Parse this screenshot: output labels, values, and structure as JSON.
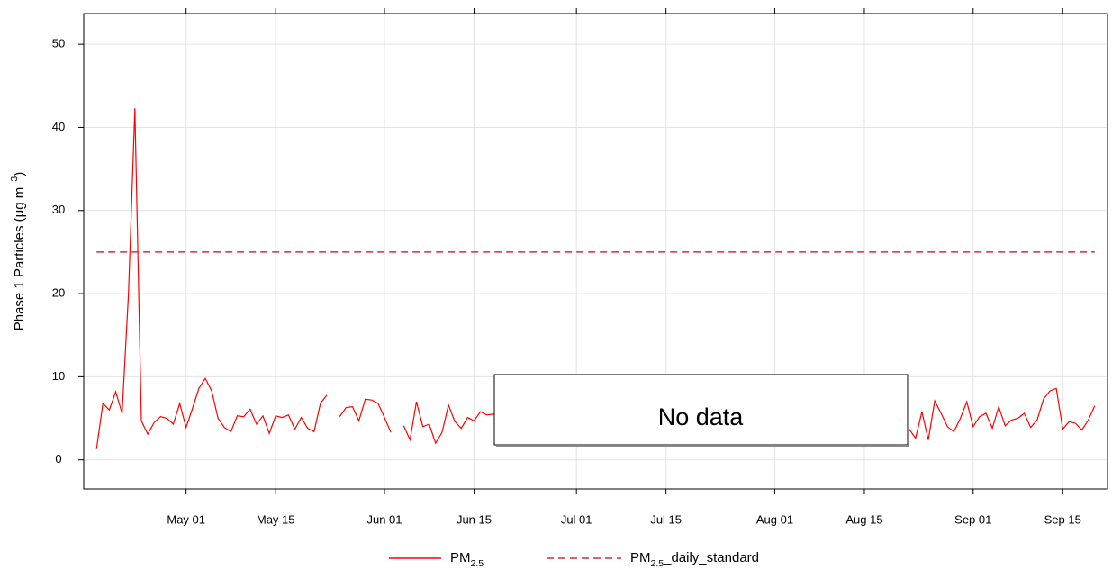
{
  "chart_data": {
    "type": "line",
    "ylabel": "Phase 1 Particles (μg m−3)",
    "annotation": "No data",
    "x": [
      "Apr 17",
      "Apr 18",
      "Apr 19",
      "Apr 20",
      "Apr 21",
      "Apr 22",
      "Apr 23",
      "Apr 24",
      "Apr 25",
      "Apr 26",
      "Apr 27",
      "Apr 28",
      "Apr 29",
      "Apr 30",
      "May 01",
      "May 02",
      "May 03",
      "May 04",
      "May 05",
      "May 06",
      "May 07",
      "May 08",
      "May 09",
      "May 10",
      "May 11",
      "May 12",
      "May 13",
      "May 14",
      "May 15",
      "May 16",
      "May 17",
      "May 18",
      "May 19",
      "May 20",
      "May 21",
      "May 22",
      "May 23",
      "May 24",
      "May 25",
      "May 26",
      "May 27",
      "May 28",
      "May 29",
      "May 30",
      "May 31",
      "Jun 01",
      "Jun 02",
      "Jun 03",
      "Jun 04",
      "Jun 05",
      "Jun 06",
      "Jun 07",
      "Jun 08",
      "Jun 09",
      "Jun 10",
      "Jun 11",
      "Jun 12",
      "Jun 13",
      "Jun 14",
      "Jun 15",
      "Jun 16",
      "Jun 17",
      "Jun 18",
      "Jun 19",
      "Jun 20",
      "Aug 21",
      "Aug 22",
      "Aug 23",
      "Aug 24",
      "Aug 25",
      "Aug 26",
      "Aug 27",
      "Aug 28",
      "Aug 29",
      "Aug 30",
      "Aug 31",
      "Sep 01",
      "Sep 02",
      "Sep 03",
      "Sep 04",
      "Sep 05",
      "Sep 06",
      "Sep 07",
      "Sep 08",
      "Sep 09",
      "Sep 10",
      "Sep 11",
      "Sep 12",
      "Sep 13",
      "Sep 14",
      "Sep 15",
      "Sep 16",
      "Sep 17",
      "Sep 18",
      "Sep 19",
      "Sep 20"
    ],
    "series": [
      {
        "name": "PM2.5",
        "color": "#ff0000",
        "dash": false,
        "values": [
          1.3,
          6.8,
          6,
          8.2,
          5.6,
          20,
          42.3,
          4.7,
          3.1,
          4.5,
          5.2,
          5,
          4.3,
          6.8,
          3.9,
          6.2,
          8.6,
          9.8,
          8.3,
          5,
          3.9,
          3.4,
          5.3,
          5.2,
          6.1,
          4.3,
          5.3,
          3.2,
          5.3,
          5.1,
          5.4,
          3.7,
          5.1,
          3.8,
          3.4,
          6.8,
          7.8,
          null,
          5.2,
          6.3,
          6.4,
          4.7,
          7.3,
          7.2,
          6.8,
          5.1,
          3.3,
          null,
          4.1,
          2.4,
          7,
          4,
          4.3,
          2,
          3.3,
          6.6,
          4.6,
          3.8,
          5.1,
          4.7,
          5.8,
          5.4,
          5.5,
          5.3,
          null,
          null,
          3.7,
          2.6,
          5.8,
          2.4,
          7.1,
          5.6,
          4,
          3.4,
          5,
          7,
          4,
          5.2,
          5.6,
          3.8,
          6.4,
          4.1,
          4.8,
          5,
          5.6,
          3.9,
          4.8,
          7.3,
          8.3,
          8.6,
          3.7,
          4.6,
          4.4,
          3.6,
          4.8,
          6.5
        ]
      },
      {
        "name": "PM2.5_daily_standard",
        "color": "#dc2a3c",
        "dash": true,
        "x": [
          "Apr 17",
          "Sep 20"
        ],
        "values": [
          25,
          25
        ]
      }
    ],
    "xlim": [
      "Apr 15",
      "Sep 22"
    ],
    "xticks": [
      "May 01",
      "May 15",
      "Jun 01",
      "Jun 15",
      "Jul 01",
      "Jul 15",
      "Aug 01",
      "Aug 15",
      "Sep 01",
      "Sep 15"
    ],
    "ylim": [
      -3.5,
      53.7
    ],
    "yticks": [
      0,
      10,
      20,
      30,
      40,
      50
    ],
    "grid": true,
    "legend": "bottom"
  }
}
